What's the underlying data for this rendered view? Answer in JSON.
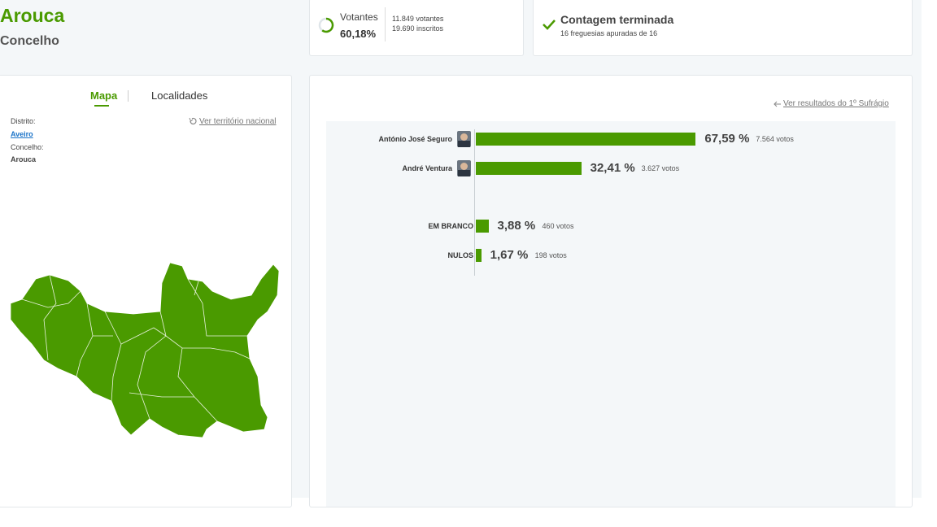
{
  "header": {
    "title": "Arouca",
    "subtitle": "Concelho"
  },
  "turnout": {
    "label": "Votantes",
    "percent": 60.18,
    "percent_label": "60,18%",
    "voters": "11.849 votantes",
    "registered": "19.690 inscritos"
  },
  "count": {
    "title": "Contagem terminada",
    "detail": "16 freguesias apuradas de 16"
  },
  "tabs": [
    "Mapa",
    "Localidades"
  ],
  "location": {
    "link": "Ver território nacional",
    "district_label": "Distrito:",
    "district": "Aveiro",
    "municipality_label": "Concelho:",
    "municipality": "Arouca"
  },
  "results": {
    "link": "Ver resultados do 1º Sufrágio",
    "candidates": [
      {
        "name": "António José Seguro",
        "percent": 67.59,
        "percent_label": "67,59 %",
        "votes": "7.564 votos"
      },
      {
        "name": "André Ventura",
        "percent": 32.41,
        "percent_label": "32,41 %",
        "votes": "3.627 votos"
      }
    ],
    "others": [
      {
        "name": "EM BRANCO",
        "percent": 3.88,
        "percent_label": "3,88 %",
        "votes": "460 votos"
      },
      {
        "name": "NULOS",
        "percent": 1.67,
        "percent_label": "1,67 %",
        "votes": "198 votos"
      }
    ]
  }
}
